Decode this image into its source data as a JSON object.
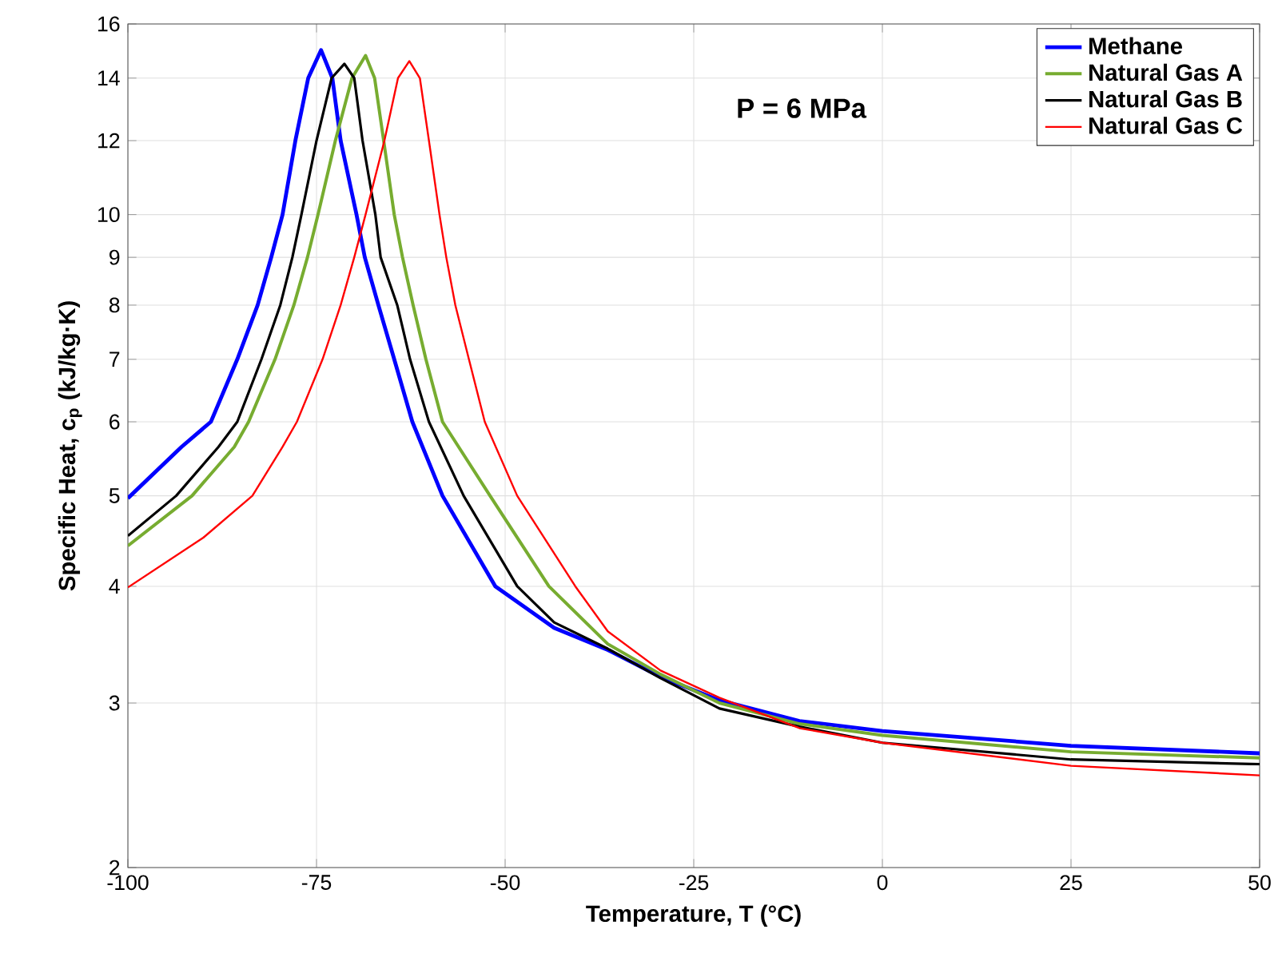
{
  "chart_data": {
    "type": "line",
    "xlabel": "Temperature, T (°C)",
    "ylabel": "Specific Heat, c$_{p}$ (kJ/kg·K)",
    "annotations": [
      "P = 6 MPa"
    ],
    "log": "y",
    "grid": true,
    "legend": "top right",
    "line_style": "solid",
    "marker": "none",
    "xlim": [
      -100,
      50
    ],
    "xticks": [
      -100,
      -75,
      -50,
      -25,
      0,
      25,
      50
    ],
    "ylim": [
      2,
      16
    ],
    "yticks": [
      2,
      3,
      4,
      5,
      6,
      7,
      8,
      9,
      10,
      12,
      14,
      16
    ],
    "series": [
      {
        "name": "Methane",
        "color": "#0000ff",
        "x": [
          -100,
          -92.9,
          -89,
          -85.5,
          -82.8,
          -81,
          -79.5,
          -77.8,
          -76.1,
          -74.4,
          -72.9,
          -71.8,
          -69.7,
          -68.6,
          -66.8,
          -64.7,
          -62.3,
          -58.3,
          -51.3,
          -43.5,
          -36.4,
          -29.4,
          -21.6,
          -11,
          0,
          25,
          50
        ],
        "values": [
          4.97,
          5.64,
          6,
          7,
          8,
          9,
          10,
          12,
          14,
          15,
          14,
          12,
          10,
          9,
          8,
          7,
          6,
          5,
          4,
          3.61,
          3.42,
          3.2,
          3.02,
          2.87,
          2.8,
          2.7,
          2.65
        ]
      },
      {
        "name": "Natural Gas A",
        "color": "#77ac30",
        "x": [
          -100,
          -91.5,
          -85.9,
          -84,
          -80.5,
          -78,
          -76.2,
          -74.8,
          -72.5,
          -70.3,
          -68.5,
          -67.3,
          -66.1,
          -64.7,
          -63.6,
          -62.2,
          -60.5,
          -58.3,
          -52,
          -44.2,
          -36.4,
          -29.4,
          -21.6,
          -11,
          0,
          25,
          50
        ],
        "values": [
          4.42,
          5,
          5.64,
          6,
          7,
          8,
          9,
          10,
          12,
          14,
          14.8,
          14,
          12,
          10,
          9,
          8,
          7,
          6,
          5,
          4,
          3.47,
          3.22,
          3,
          2.85,
          2.77,
          2.66,
          2.62
        ]
      },
      {
        "name": "Natural Gas B",
        "color": "#000000",
        "x": [
          -100,
          -93.6,
          -88,
          -85.5,
          -82.3,
          -79.8,
          -78.2,
          -77,
          -75,
          -73,
          -71.3,
          -70,
          -68.9,
          -67.2,
          -66.5,
          -64.3,
          -62.6,
          -60.1,
          -55.5,
          -48.4,
          -43.5,
          -36.4,
          -29.4,
          -21.6,
          -11,
          0,
          25,
          50
        ],
        "values": [
          4.53,
          5,
          5.64,
          6,
          7,
          8,
          9,
          10,
          12,
          14,
          14.5,
          14,
          12,
          10,
          9,
          8,
          7,
          6,
          5,
          4,
          3.66,
          3.43,
          3.19,
          2.96,
          2.83,
          2.72,
          2.61,
          2.58
        ]
      },
      {
        "name": "Natural Gas C",
        "color": "#ff0000",
        "x": [
          -100,
          -90,
          -83.5,
          -79.5,
          -77.6,
          -74.2,
          -71.8,
          -70,
          -68.5,
          -66,
          -64.2,
          -62.7,
          -61.3,
          -60.1,
          -58.7,
          -57.8,
          -56.6,
          -54.8,
          -52.7,
          -48.4,
          -40.7,
          -36.4,
          -29.4,
          -21.6,
          -11,
          0,
          25,
          50
        ],
        "values": [
          3.99,
          4.51,
          5,
          5.64,
          6,
          7,
          8,
          9,
          10,
          12,
          14,
          14.6,
          14,
          12,
          10,
          9,
          8,
          7,
          6,
          5,
          4,
          3.58,
          3.25,
          3.04,
          2.82,
          2.72,
          2.57,
          2.51
        ]
      }
    ]
  }
}
